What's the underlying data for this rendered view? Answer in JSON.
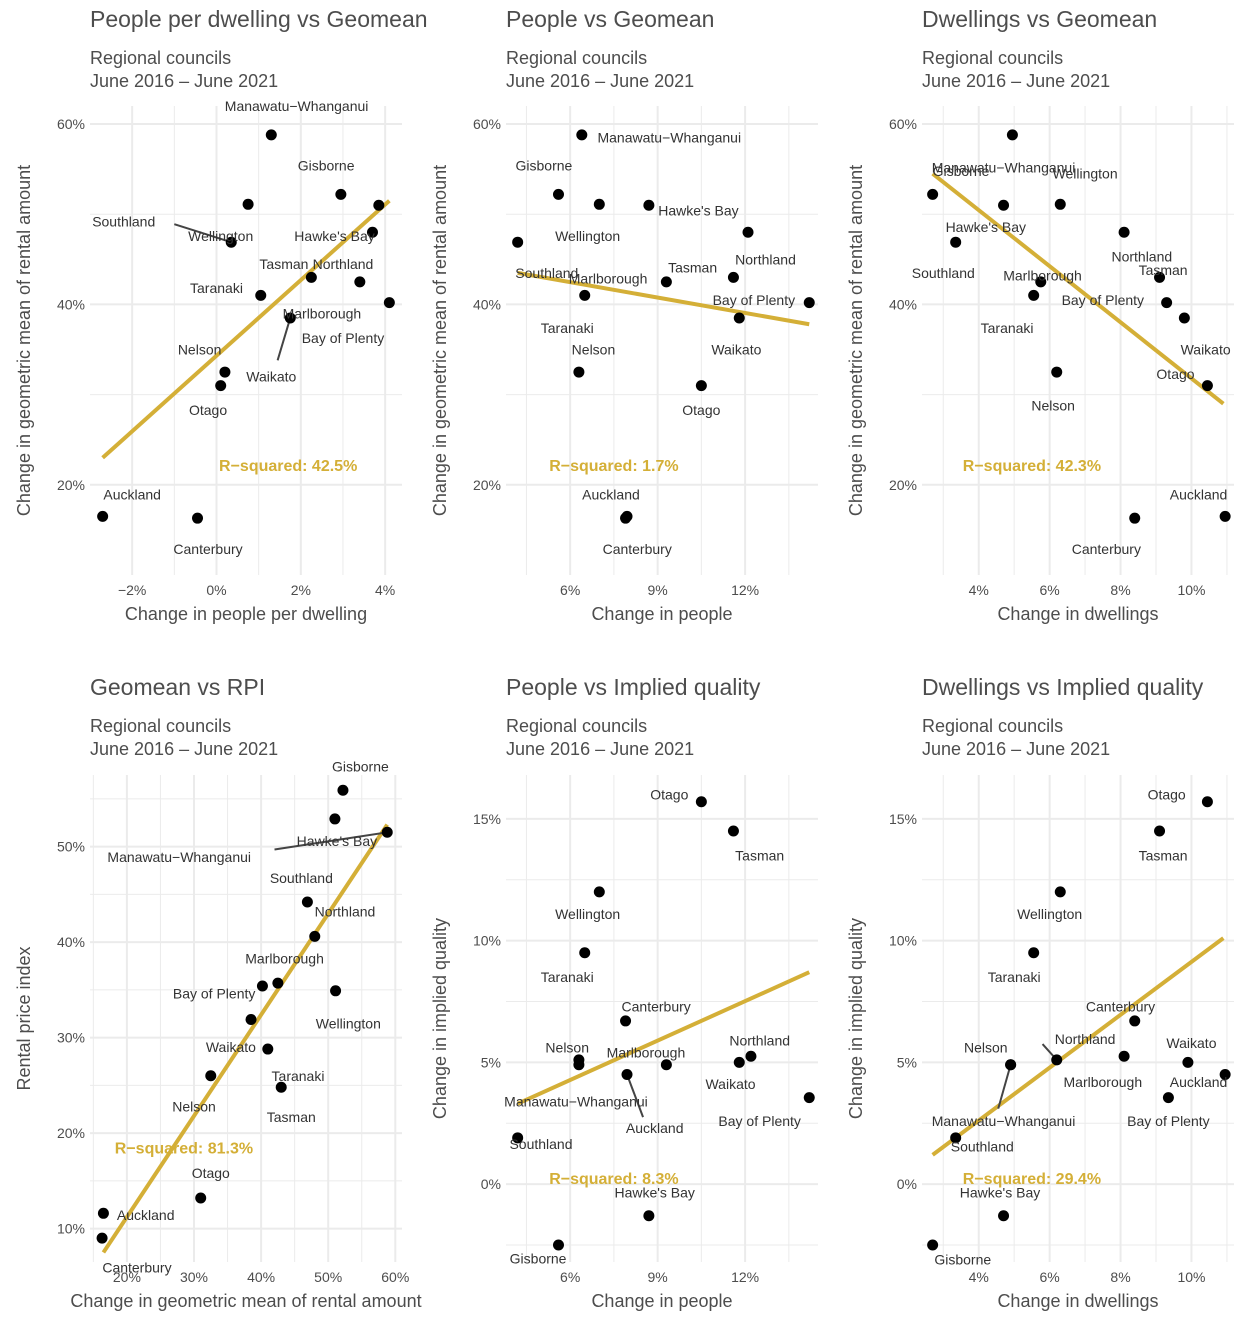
{
  "colors": {
    "fit_line": "#D4AF37",
    "point": "#000000",
    "grid": "#ebebeb",
    "text": "#4d4d4d"
  },
  "chart_data": [
    {
      "type": "scatter",
      "title": "People per dwelling vs Geomean",
      "subtitle_1": "Regional councils",
      "subtitle_2": "June 2016 – June 2021",
      "xlabel": "Change in people per dwelling",
      "ylabel": "Change in geometric mean of rental amount",
      "xlim": [
        -3.0,
        4.4
      ],
      "ylim": [
        10.0,
        62.0
      ],
      "x_ticks": [
        {
          "v": -2,
          "label": "−2%"
        },
        {
          "v": 0,
          "label": "0%"
        },
        {
          "v": 2,
          "label": "2%"
        },
        {
          "v": 4,
          "label": "4%"
        }
      ],
      "y_ticks": [
        {
          "v": 20,
          "label": "20%"
        },
        {
          "v": 40,
          "label": "40%"
        },
        {
          "v": 60,
          "label": "60%"
        }
      ],
      "fit": [
        [
          -2.7,
          23.0
        ],
        [
          4.1,
          51.5
        ]
      ],
      "r2": {
        "text": "R−squared: 42.5%",
        "x": 1.7,
        "y": 22.2
      },
      "points": [
        {
          "name": "Manawatu−Whanganui",
          "x": 1.3,
          "y": 58.8,
          "lx": 1.9,
          "ly": 62.0
        },
        {
          "name": "Gisborne",
          "x": 2.95,
          "y": 52.2,
          "lx": 2.6,
          "ly": 55.4
        },
        {
          "name": "Hawke's Bay",
          "x": 3.85,
          "y": 51.0,
          "lx": 2.8,
          "ly": 47.6
        },
        {
          "name": "Wellington",
          "x": 0.75,
          "y": 51.1,
          "lx": 0.1,
          "ly": 47.6
        },
        {
          "name": "Southland",
          "x": 0.35,
          "y": 46.9,
          "lx": -2.2,
          "ly": 49.2,
          "lead": [
            -1.0,
            48.9
          ]
        },
        {
          "name": "Tasman",
          "x": 2.25,
          "y": 43.0,
          "lx": 1.6,
          "ly": 44.5
        },
        {
          "name": "Northland",
          "x": 3.7,
          "y": 48.0,
          "lx": 3.0,
          "ly": 44.5
        },
        {
          "name": "Taranaki",
          "x": 1.05,
          "y": 41.0,
          "lx": 0.0,
          "ly": 41.8
        },
        {
          "name": "Marlborough",
          "x": 3.4,
          "y": 42.5,
          "lx": 2.5,
          "ly": 39.0
        },
        {
          "name": "Bay of Plenty",
          "x": 4.1,
          "y": 40.2,
          "lx": 3.0,
          "ly": 36.3
        },
        {
          "name": "Waikato",
          "x": 1.75,
          "y": 38.5,
          "lx": 1.3,
          "ly": 32.0,
          "lead": [
            1.45,
            33.8
          ]
        },
        {
          "name": "Nelson",
          "x": 0.2,
          "y": 32.5,
          "lx": -0.4,
          "ly": 35.0
        },
        {
          "name": "Otago",
          "x": 0.1,
          "y": 31.0,
          "lx": -0.2,
          "ly": 28.3
        },
        {
          "name": "Auckland",
          "x": -2.7,
          "y": 16.5,
          "lx": -2.0,
          "ly": 18.9
        },
        {
          "name": "Canterbury",
          "x": -0.45,
          "y": 16.3,
          "lx": -0.2,
          "ly": 12.9
        }
      ]
    },
    {
      "type": "scatter",
      "title": "People vs Geomean",
      "subtitle_1": "Regional councils",
      "subtitle_2": "June 2016 – June 2021",
      "xlabel": "Change in people",
      "ylabel": "Change in geometric mean of rental amount",
      "xlim": [
        3.8,
        14.5
      ],
      "ylim": [
        10.0,
        62.0
      ],
      "x_ticks": [
        {
          "v": 6,
          "label": "6%"
        },
        {
          "v": 9,
          "label": "9%"
        },
        {
          "v": 12,
          "label": "12%"
        }
      ],
      "y_ticks": [
        {
          "v": 20,
          "label": "20%"
        },
        {
          "v": 40,
          "label": "40%"
        },
        {
          "v": 60,
          "label": "60%"
        }
      ],
      "fit": [
        [
          4.2,
          43.5
        ],
        [
          14.2,
          37.8
        ]
      ],
      "r2": {
        "text": "R−squared: 1.7%",
        "x": 7.5,
        "y": 22.2
      },
      "points": [
        {
          "name": "Manawatu−Whanganui",
          "x": 6.4,
          "y": 58.8,
          "lx": 9.4,
          "ly": 58.5
        },
        {
          "name": "Gisborne",
          "x": 5.6,
          "y": 52.2,
          "lx": 5.1,
          "ly": 55.4
        },
        {
          "name": "Wellington",
          "x": 7.0,
          "y": 51.1,
          "lx": 6.6,
          "ly": 47.6
        },
        {
          "name": "Hawke's Bay",
          "x": 8.7,
          "y": 51.0,
          "lx": 10.4,
          "ly": 50.4
        },
        {
          "name": "Northland",
          "x": 12.1,
          "y": 48.0,
          "lx": 12.7,
          "ly": 45.0
        },
        {
          "name": "Southland",
          "x": 4.2,
          "y": 46.9,
          "lx": 5.2,
          "ly": 43.5
        },
        {
          "name": "Marlborough",
          "x": 9.3,
          "y": 42.5,
          "lx": 7.3,
          "ly": 42.9
        },
        {
          "name": "Tasman",
          "x": 11.6,
          "y": 43.0,
          "lx": 10.2,
          "ly": 44.1
        },
        {
          "name": "Bay of Plenty",
          "x": 14.2,
          "y": 40.2,
          "lx": 12.3,
          "ly": 40.5
        },
        {
          "name": "Taranaki",
          "x": 6.5,
          "y": 41.0,
          "lx": 5.9,
          "ly": 37.4
        },
        {
          "name": "Waikato",
          "x": 11.8,
          "y": 38.5,
          "lx": 11.7,
          "ly": 35.0
        },
        {
          "name": "Nelson",
          "x": 6.3,
          "y": 32.5,
          "lx": 6.8,
          "ly": 35.0
        },
        {
          "name": "Otago",
          "x": 10.5,
          "y": 31.0,
          "lx": 10.5,
          "ly": 28.3
        },
        {
          "name": "Auckland",
          "x": 7.95,
          "y": 16.5,
          "lx": 7.4,
          "ly": 18.9
        },
        {
          "name": "Canterbury",
          "x": 7.9,
          "y": 16.3,
          "lx": 8.3,
          "ly": 12.9
        }
      ]
    },
    {
      "type": "scatter",
      "title": "Dwellings vs Geomean",
      "subtitle_1": "Regional councils",
      "subtitle_2": "June 2016 – June 2021",
      "xlabel": "Change in dwellings",
      "ylabel": "Change in geometric mean of rental amount",
      "xlim": [
        2.4,
        11.2
      ],
      "ylim": [
        10.0,
        62.0
      ],
      "x_ticks": [
        {
          "v": 4,
          "label": "4%"
        },
        {
          "v": 6,
          "label": "6%"
        },
        {
          "v": 8,
          "label": "8%"
        },
        {
          "v": 10,
          "label": "10%"
        }
      ],
      "y_ticks": [
        {
          "v": 20,
          "label": "20%"
        },
        {
          "v": 40,
          "label": "40%"
        },
        {
          "v": 60,
          "label": "60%"
        }
      ],
      "fit": [
        [
          2.7,
          54.5
        ],
        [
          10.9,
          29.0
        ]
      ],
      "r2": {
        "text": "R−squared: 42.3%",
        "x": 5.5,
        "y": 22.2
      },
      "points": [
        {
          "name": "Manawatu−Whanganui",
          "x": 4.95,
          "y": 58.8,
          "lx": 4.7,
          "ly": 55.2
        },
        {
          "name": "Gisborne",
          "x": 2.7,
          "y": 52.2,
          "lx": 3.5,
          "ly": 54.8
        },
        {
          "name": "Wellington",
          "x": 6.3,
          "y": 51.1,
          "lx": 7.0,
          "ly": 54.5
        },
        {
          "name": "Hawke's Bay",
          "x": 4.7,
          "y": 51.0,
          "lx": 4.2,
          "ly": 48.6
        },
        {
          "name": "Southland",
          "x": 3.35,
          "y": 46.9,
          "lx": 3.0,
          "ly": 43.5
        },
        {
          "name": "Northland",
          "x": 8.1,
          "y": 48.0,
          "lx": 8.6,
          "ly": 45.3
        },
        {
          "name": "Tasman",
          "x": 9.1,
          "y": 43.0,
          "lx": 9.2,
          "ly": 43.8
        },
        {
          "name": "Marlborough",
          "x": 5.75,
          "y": 42.5,
          "lx": 5.8,
          "ly": 43.2
        },
        {
          "name": "Bay of Plenty",
          "x": 9.3,
          "y": 40.2,
          "lx": 7.5,
          "ly": 40.5
        },
        {
          "name": "Taranaki",
          "x": 5.55,
          "y": 41.0,
          "lx": 4.8,
          "ly": 37.4
        },
        {
          "name": "Waikato",
          "x": 9.8,
          "y": 38.5,
          "lx": 10.4,
          "ly": 35.0
        },
        {
          "name": "Otago",
          "x": 10.45,
          "y": 31.0,
          "lx": 9.55,
          "ly": 32.3
        },
        {
          "name": "Nelson",
          "x": 6.2,
          "y": 32.5,
          "lx": 6.1,
          "ly": 28.8
        },
        {
          "name": "Auckland",
          "x": 10.95,
          "y": 16.5,
          "lx": 10.2,
          "ly": 18.9
        },
        {
          "name": "Canterbury",
          "x": 8.4,
          "y": 16.3,
          "lx": 7.6,
          "ly": 12.9
        }
      ]
    },
    {
      "type": "scatter",
      "title": "Geomean vs RPI",
      "subtitle_1": "Regional councils",
      "subtitle_2": "June 2016 – June 2021",
      "xlabel": "Change in geometric mean of rental amount",
      "ylabel": "Rental price index",
      "xlim": [
        14.5,
        61.0
      ],
      "ylim": [
        6.5,
        57.5
      ],
      "x_ticks": [
        {
          "v": 20,
          "label": "20%"
        },
        {
          "v": 30,
          "label": "30%"
        },
        {
          "v": 40,
          "label": "40%"
        },
        {
          "v": 50,
          "label": "50%"
        },
        {
          "v": 60,
          "label": "60%"
        }
      ],
      "y_ticks": [
        {
          "v": 10,
          "label": "10%"
        },
        {
          "v": 20,
          "label": "20%"
        },
        {
          "v": 30,
          "label": "30%"
        },
        {
          "v": 40,
          "label": "40%"
        },
        {
          "v": 50,
          "label": "50%"
        }
      ],
      "fit": [
        [
          16.5,
          7.5
        ],
        [
          58.8,
          52.3
        ]
      ],
      "r2": {
        "text": "R−squared: 81.3%",
        "x": 28.5,
        "y": 18.5
      },
      "points": [
        {
          "name": "Gisborne",
          "x": 52.2,
          "y": 55.9,
          "lx": 54.8,
          "ly": 58.4
        },
        {
          "name": "Hawke's Bay",
          "x": 51.0,
          "y": 52.9,
          "lx": 51.3,
          "ly": 50.6
        },
        {
          "name": "Manawatu−Whanganui",
          "x": 58.8,
          "y": 51.5,
          "lx": 27.8,
          "ly": 48.9,
          "lead": [
            42.0,
            49.7
          ]
        },
        {
          "name": "Southland",
          "x": 46.9,
          "y": 44.2,
          "lx": 46.0,
          "ly": 46.7
        },
        {
          "name": "Northland",
          "x": 48.0,
          "y": 40.6,
          "lx": 52.5,
          "ly": 43.2
        },
        {
          "name": "Marlborough",
          "x": 42.5,
          "y": 35.7,
          "lx": 43.5,
          "ly": 38.3
        },
        {
          "name": "Bay of Plenty",
          "x": 40.2,
          "y": 35.4,
          "lx": 33.0,
          "ly": 34.6
        },
        {
          "name": "Wellington",
          "x": 51.1,
          "y": 34.9,
          "lx": 53.0,
          "ly": 31.5
        },
        {
          "name": "Waikato",
          "x": 38.5,
          "y": 31.9,
          "lx": 35.5,
          "ly": 29.0
        },
        {
          "name": "Taranaki",
          "x": 41.0,
          "y": 28.8,
          "lx": 45.5,
          "ly": 26.0
        },
        {
          "name": "Nelson",
          "x": 32.5,
          "y": 26.0,
          "lx": 30.0,
          "ly": 22.8
        },
        {
          "name": "Tasman",
          "x": 43.0,
          "y": 24.8,
          "lx": 44.5,
          "ly": 21.7
        },
        {
          "name": "Otago",
          "x": 31.0,
          "y": 13.2,
          "lx": 32.5,
          "ly": 15.8
        },
        {
          "name": "Auckland",
          "x": 16.5,
          "y": 11.6,
          "lx": 22.8,
          "ly": 11.4
        },
        {
          "name": "Canterbury",
          "x": 16.3,
          "y": 9.0,
          "lx": 21.5,
          "ly": 5.9
        }
      ]
    },
    {
      "type": "scatter",
      "title": "People vs Implied quality",
      "subtitle_1": "Regional councils",
      "subtitle_2": "June 2016 – June 2021",
      "xlabel": "Change in people",
      "ylabel": "Change in implied quality",
      "xlim": [
        3.8,
        14.5
      ],
      "ylim": [
        -3.2,
        16.8
      ],
      "x_ticks": [
        {
          "v": 6,
          "label": "6%"
        },
        {
          "v": 9,
          "label": "9%"
        },
        {
          "v": 12,
          "label": "12%"
        }
      ],
      "y_ticks": [
        {
          "v": 0,
          "label": "0%"
        },
        {
          "v": 5,
          "label": "5%"
        },
        {
          "v": 10,
          "label": "10%"
        },
        {
          "v": 15,
          "label": "15%"
        }
      ],
      "fit": [
        [
          4.2,
          3.3
        ],
        [
          14.2,
          8.7
        ]
      ],
      "r2": {
        "text": "R−squared: 8.3%",
        "x": 7.5,
        "y": 0.25
      },
      "points": [
        {
          "name": "Otago",
          "x": 10.5,
          "y": 15.7,
          "lx": 9.4,
          "ly": 16.0
        },
        {
          "name": "Tasman",
          "x": 11.6,
          "y": 14.5,
          "lx": 12.5,
          "ly": 13.5
        },
        {
          "name": "Wellington",
          "x": 7.0,
          "y": 12.0,
          "lx": 6.6,
          "ly": 11.1
        },
        {
          "name": "Taranaki",
          "x": 6.5,
          "y": 9.5,
          "lx": 5.9,
          "ly": 8.5
        },
        {
          "name": "Canterbury",
          "x": 7.9,
          "y": 6.7,
          "lx": 8.95,
          "ly": 7.3
        },
        {
          "name": "Nelson",
          "x": 6.3,
          "y": 5.1,
          "lx": 5.9,
          "ly": 5.6
        },
        {
          "name": "Marlborough",
          "x": 9.3,
          "y": 4.9,
          "lx": 8.6,
          "ly": 5.4
        },
        {
          "name": "Northland",
          "x": 12.2,
          "y": 5.25,
          "lx": 12.5,
          "ly": 5.9
        },
        {
          "name": "Manawatu−Whanganui",
          "x": 6.3,
          "y": 4.9,
          "lx": 6.2,
          "ly": 3.4
        },
        {
          "name": "Waikato",
          "x": 11.8,
          "y": 5.0,
          "lx": 11.5,
          "ly": 4.1
        },
        {
          "name": "Auckland",
          "x": 7.95,
          "y": 4.5,
          "lx": 8.9,
          "ly": 2.3,
          "lead": [
            8.5,
            2.75
          ]
        },
        {
          "name": "Bay of Plenty",
          "x": 14.2,
          "y": 3.55,
          "lx": 12.5,
          "ly": 2.6
        },
        {
          "name": "Southland",
          "x": 4.2,
          "y": 1.9,
          "lx": 5.0,
          "ly": 1.65
        },
        {
          "name": "Hawke's Bay",
          "x": 8.7,
          "y": -1.3,
          "lx": 8.9,
          "ly": -0.35
        },
        {
          "name": "Gisborne",
          "x": 5.6,
          "y": -2.5,
          "lx": 4.9,
          "ly": -3.05
        }
      ]
    },
    {
      "type": "scatter",
      "title": "Dwellings vs Implied quality",
      "subtitle_1": "Regional councils",
      "subtitle_2": "June 2016 – June 2021",
      "xlabel": "Change in dwellings",
      "ylabel": "Change in implied quality",
      "xlim": [
        2.4,
        11.2
      ],
      "ylim": [
        -3.2,
        16.8
      ],
      "x_ticks": [
        {
          "v": 4,
          "label": "4%"
        },
        {
          "v": 6,
          "label": "6%"
        },
        {
          "v": 8,
          "label": "8%"
        },
        {
          "v": 10,
          "label": "10%"
        }
      ],
      "y_ticks": [
        {
          "v": 0,
          "label": "0%"
        },
        {
          "v": 5,
          "label": "5%"
        },
        {
          "v": 10,
          "label": "10%"
        },
        {
          "v": 15,
          "label": "15%"
        }
      ],
      "fit": [
        [
          2.7,
          1.2
        ],
        [
          10.9,
          10.1
        ]
      ],
      "r2": {
        "text": "R−squared: 29.4%",
        "x": 5.5,
        "y": 0.25
      },
      "points": [
        {
          "name": "Otago",
          "x": 10.45,
          "y": 15.7,
          "lx": 9.3,
          "ly": 16.0
        },
        {
          "name": "Tasman",
          "x": 9.1,
          "y": 14.5,
          "lx": 9.2,
          "ly": 13.5
        },
        {
          "name": "Wellington",
          "x": 6.3,
          "y": 12.0,
          "lx": 6.0,
          "ly": 11.1
        },
        {
          "name": "Taranaki",
          "x": 5.55,
          "y": 9.5,
          "lx": 5.0,
          "ly": 8.5
        },
        {
          "name": "Canterbury",
          "x": 8.4,
          "y": 6.7,
          "lx": 8.0,
          "ly": 7.3
        },
        {
          "name": "Nelson",
          "x": 4.9,
          "y": 4.9,
          "lx": 4.2,
          "ly": 5.6
        },
        {
          "name": "Northland",
          "x": 6.2,
          "y": 5.1,
          "lx": 7.0,
          "ly": 5.95,
          "lead": [
            5.8,
            5.75
          ]
        },
        {
          "name": "Waikato",
          "x": 9.9,
          "y": 5.0,
          "lx": 10.0,
          "ly": 5.8
        },
        {
          "name": "Marlborough",
          "x": 8.1,
          "y": 5.25,
          "lx": 7.5,
          "ly": 4.2
        },
        {
          "name": "Auckland",
          "x": 10.95,
          "y": 4.5,
          "lx": 10.2,
          "ly": 4.2
        },
        {
          "name": "Manawatu−Whanganui",
          "x": 4.9,
          "y": 4.9,
          "lx": 4.7,
          "ly": 2.6,
          "lead": [
            4.55,
            3.1
          ]
        },
        {
          "name": "Bay of Plenty",
          "x": 9.35,
          "y": 3.55,
          "lx": 9.35,
          "ly": 2.6
        },
        {
          "name": "Southland",
          "x": 3.35,
          "y": 1.9,
          "lx": 4.1,
          "ly": 1.55
        },
        {
          "name": "Hawke's Bay",
          "x": 4.7,
          "y": -1.3,
          "lx": 4.6,
          "ly": -0.35
        },
        {
          "name": "Gisborne",
          "x": 2.7,
          "y": -2.5,
          "lx": 3.55,
          "ly": -3.1
        }
      ]
    }
  ]
}
